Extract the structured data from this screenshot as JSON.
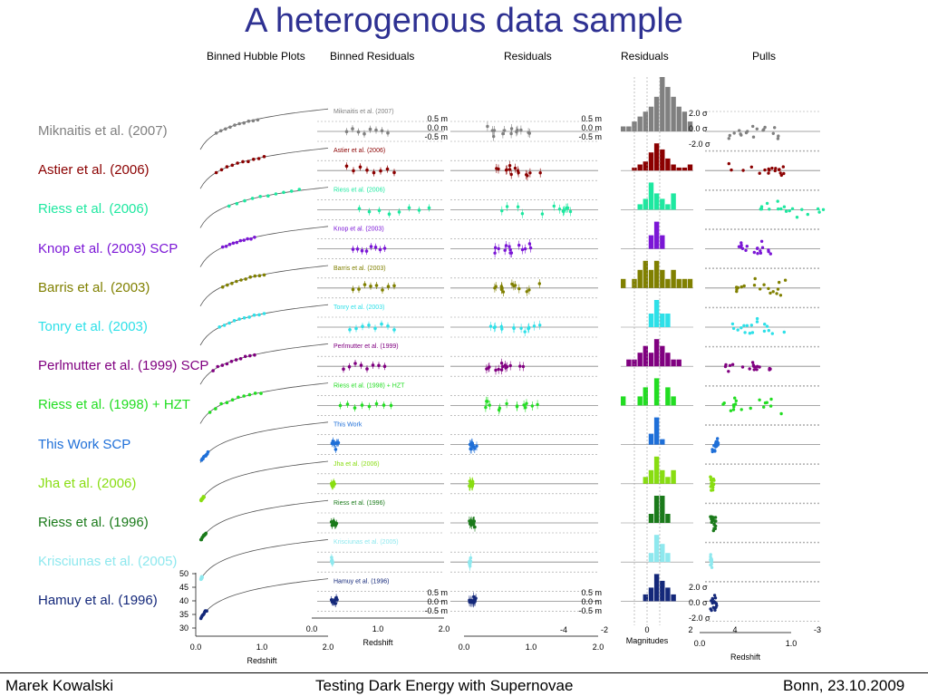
{
  "title": "A heterogenous data sample",
  "column_headers": [
    "Binned Hubble Plots",
    "Binned Residuals",
    "Residuals",
    "Residuals",
    "Pulls"
  ],
  "footer": {
    "author": "Marek Kowalski",
    "talk": "Testing Dark Energy with Supernovae",
    "place_date": "Bonn, 23.10.2009"
  },
  "chart_data": {
    "type": "scatter",
    "samples": [
      {
        "name": "Miknaitis et al. (2007)",
        "small": "Miknaitis et al. (2007)",
        "color": "#808080",
        "z_min": 0.25,
        "z_max": 0.9,
        "hist": [
          1,
          1,
          2,
          3,
          4,
          5,
          7,
          11,
          9,
          7,
          5,
          4,
          2
        ]
      },
      {
        "name": "Astier et al. (2006)",
        "small": "Astier et al. (2006)",
        "color": "#8b0000",
        "z_min": 0.25,
        "z_max": 1.0,
        "hist": [
          0,
          0,
          1,
          2,
          3,
          6,
          9,
          7,
          4,
          2,
          1,
          1,
          2
        ]
      },
      {
        "name": "Riess et al. (2006)",
        "small": "Riess et al. (2006)",
        "color": "#1ee8a0",
        "z_min": 0.45,
        "z_max": 1.55,
        "hist": [
          0,
          0,
          0,
          1,
          2,
          5,
          3,
          2,
          1,
          3,
          0,
          0,
          0
        ]
      },
      {
        "name": "Knop et al. (2003)  SCP",
        "small": "Knop et al. (2003)",
        "color": "#7b16d6",
        "z_min": 0.35,
        "z_max": 0.85,
        "hist": [
          0,
          0,
          0,
          0,
          0,
          1,
          2,
          1,
          0,
          0,
          0,
          0,
          0
        ]
      },
      {
        "name": "Barris et al. (2003)",
        "small": "Barris et al. (2003)",
        "color": "#808000",
        "z_min": 0.35,
        "z_max": 1.0,
        "hist": [
          1,
          0,
          1,
          2,
          3,
          2,
          3,
          2,
          1,
          2,
          1,
          1,
          1
        ]
      },
      {
        "name": "Tonry et al. (2003)",
        "small": "Tonry et al. (2003)",
        "color": "#2ee0e8",
        "z_min": 0.3,
        "z_max": 1.0,
        "hist": [
          0,
          0,
          0,
          0,
          0,
          1,
          2,
          1,
          1,
          0,
          0,
          0,
          0
        ]
      },
      {
        "name": "Perlmutter et al. (1999)  SCP",
        "small": "Perlmutter et al. (1999)",
        "color": "#800080",
        "z_min": 0.2,
        "z_max": 0.85,
        "hist": [
          0,
          1,
          1,
          2,
          3,
          2,
          4,
          3,
          2,
          1,
          1,
          0,
          0
        ]
      },
      {
        "name": "Riess et al. (1998) + HZT",
        "small": "Riess et al. (1998) + HZT",
        "color": "#22dd22",
        "z_min": 0.15,
        "z_max": 0.95,
        "hist": [
          1,
          0,
          0,
          1,
          2,
          0,
          3,
          0,
          2,
          1,
          0,
          0,
          0
        ]
      },
      {
        "name": "This Work  SCP",
        "small": "This Work",
        "color": "#1e6fd8",
        "z_min": 0.02,
        "z_max": 0.12,
        "hist": [
          0,
          0,
          0,
          0,
          0,
          2,
          5,
          1,
          0,
          0,
          0,
          0,
          0
        ]
      },
      {
        "name": "Jha et al. (2006)",
        "small": "Jha et al. (2006)",
        "color": "#88dd11",
        "z_min": 0.01,
        "z_max": 0.06,
        "hist": [
          0,
          0,
          0,
          0,
          1,
          2,
          4,
          2,
          1,
          2,
          0,
          0,
          0
        ]
      },
      {
        "name": "Riess et al. (1996)",
        "small": "Riess et al. (1996)",
        "color": "#1a7a1a",
        "z_min": 0.01,
        "z_max": 0.09,
        "hist": [
          0,
          0,
          0,
          0,
          0,
          1,
          3,
          3,
          1,
          0,
          0,
          0,
          0
        ]
      },
      {
        "name": "Krisciunas et al. (2005)",
        "small": "Krisciunas et al. (2005)",
        "color": "#8ee8ee",
        "z_min": 0.01,
        "z_max": 0.03,
        "hist": [
          0,
          0,
          0,
          0,
          0,
          1,
          3,
          2,
          1,
          0,
          0,
          0,
          0
        ]
      },
      {
        "name": "Hamuy et al. (1996)",
        "small": "Hamuy et al. (1996)",
        "color": "#14287a",
        "z_min": 0.01,
        "z_max": 0.1,
        "hist": [
          0,
          0,
          0,
          0,
          1,
          2,
          4,
          3,
          2,
          1,
          0,
          0,
          0
        ]
      }
    ],
    "hubble_yticks": [
      "50",
      "45",
      "40",
      "35",
      "30"
    ],
    "redshift_ticks_a": [
      "0.0",
      "1.0",
      "2.0"
    ],
    "redshift_ticks_b": [
      "0.0",
      "1.0",
      "2.0"
    ],
    "redshift_ticks_c": [
      "0.0",
      "1.0",
      "2.0"
    ],
    "redshift_ticks_pulls": [
      "0.0",
      "1.0"
    ],
    "residual_ticks": [
      "0.5 m",
      "0.0 m",
      "-0.5 m"
    ],
    "pull_ticks": [
      "2.0 σ",
      "0.0 σ",
      "-2.0 σ"
    ],
    "magnitude_ticks": [
      "-4",
      "-2",
      "0",
      "2",
      "4",
      "-3"
    ],
    "xlabel_redshift": "Redshift",
    "xlabel_magnitudes": "Magnitudes"
  }
}
